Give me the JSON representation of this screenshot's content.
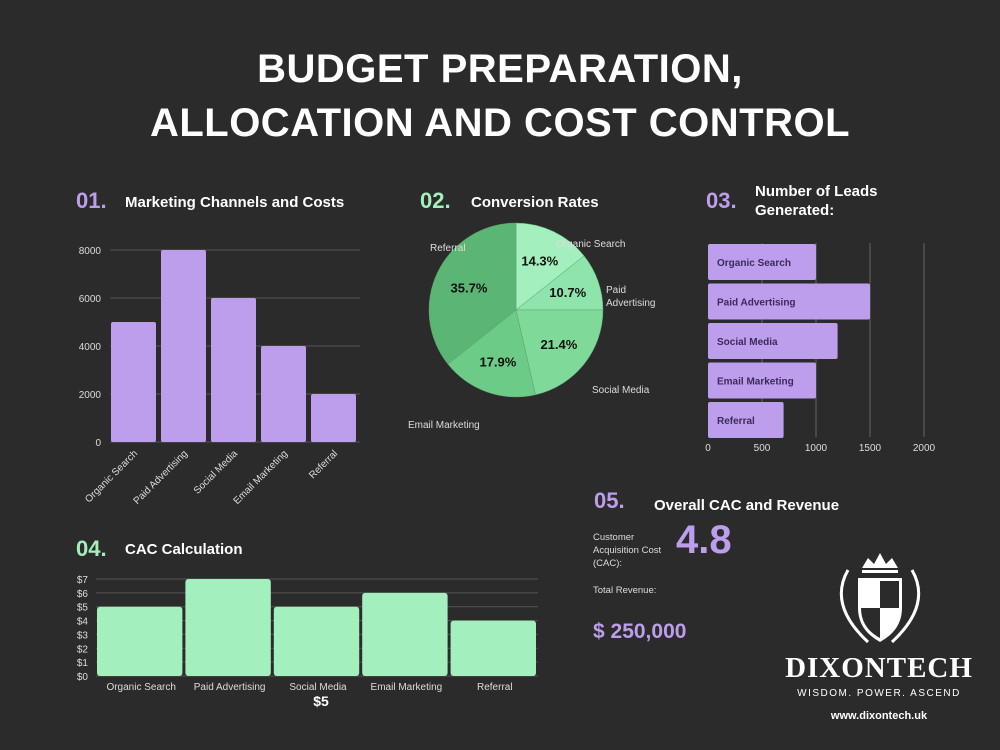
{
  "title": [
    "BUDGET PREPARATION,",
    "ALLOCATION AND COST CONTROL"
  ],
  "sections": {
    "s1": {
      "num": "01.",
      "title": "Marketing Channels and Costs"
    },
    "s2": {
      "num": "02.",
      "title": "Conversion Rates"
    },
    "s3": {
      "num": "03.",
      "title": "Number of Leads Generated:"
    },
    "s4": {
      "num": "04.",
      "title": "CAC Calculation"
    },
    "s5": {
      "num": "05.",
      "title": "Overall CAC and Revenue"
    }
  },
  "colors": {
    "purple": "#bd9eec",
    "green": "#a3efbd",
    "pie": [
      "#a3efbd",
      "#8fe4ac",
      "#7fda9a",
      "#6ccb86",
      "#5bb574"
    ]
  },
  "chart_data": [
    {
      "type": "bar",
      "categories": [
        "Organic Search",
        "Paid Advertising",
        "Social Media",
        "Email Marketing",
        "Referral"
      ],
      "values": [
        5000,
        8000,
        6000,
        4000,
        2000
      ],
      "ylim": [
        0,
        8000
      ],
      "yticks": [
        "0",
        "2000",
        "4000",
        "6000",
        "8000"
      ],
      "grid": true
    },
    {
      "type": "pie",
      "categories": [
        "Organic Search",
        "Paid Advertising",
        "Social Media",
        "Email Marketing",
        "Referral"
      ],
      "values": [
        14.3,
        10.7,
        21.4,
        17.9,
        35.7
      ],
      "labels": [
        "14.3%",
        "10.7%",
        "21.4%",
        "17.9%",
        "35.7%"
      ]
    },
    {
      "type": "bar",
      "orientation": "horizontal",
      "categories": [
        "Organic Search",
        "Paid Advertising",
        "Social Media",
        "Email Marketing",
        "Referral"
      ],
      "values": [
        1000,
        1500,
        1200,
        1000,
        700
      ],
      "xlim": [
        0,
        2000
      ],
      "xticks": [
        "0",
        "500",
        "1000",
        "1500",
        "2000"
      ],
      "grid": true
    },
    {
      "type": "bar",
      "categories": [
        "Organic Search",
        "Paid Advertising",
        "Social Media",
        "Email Marketing",
        "Referral"
      ],
      "values": [
        5,
        7,
        5,
        6,
        4
      ],
      "ylim": [
        0,
        7
      ],
      "yticks": [
        "$0",
        "$1",
        "$2",
        "$3",
        "$4",
        "$5",
        "$6",
        "$7"
      ],
      "grid": true,
      "annotation": "$5"
    }
  ],
  "cac": {
    "label": "Customer Acquisition Cost (CAC):",
    "value": "4.8",
    "revenue_label": "Total Revenue:",
    "revenue": "$ 250,000"
  },
  "brand": {
    "name": "DIXONTECH",
    "tagline": "WISDOM. POWER. ASCEND",
    "url": "www.dixontech.uk"
  }
}
